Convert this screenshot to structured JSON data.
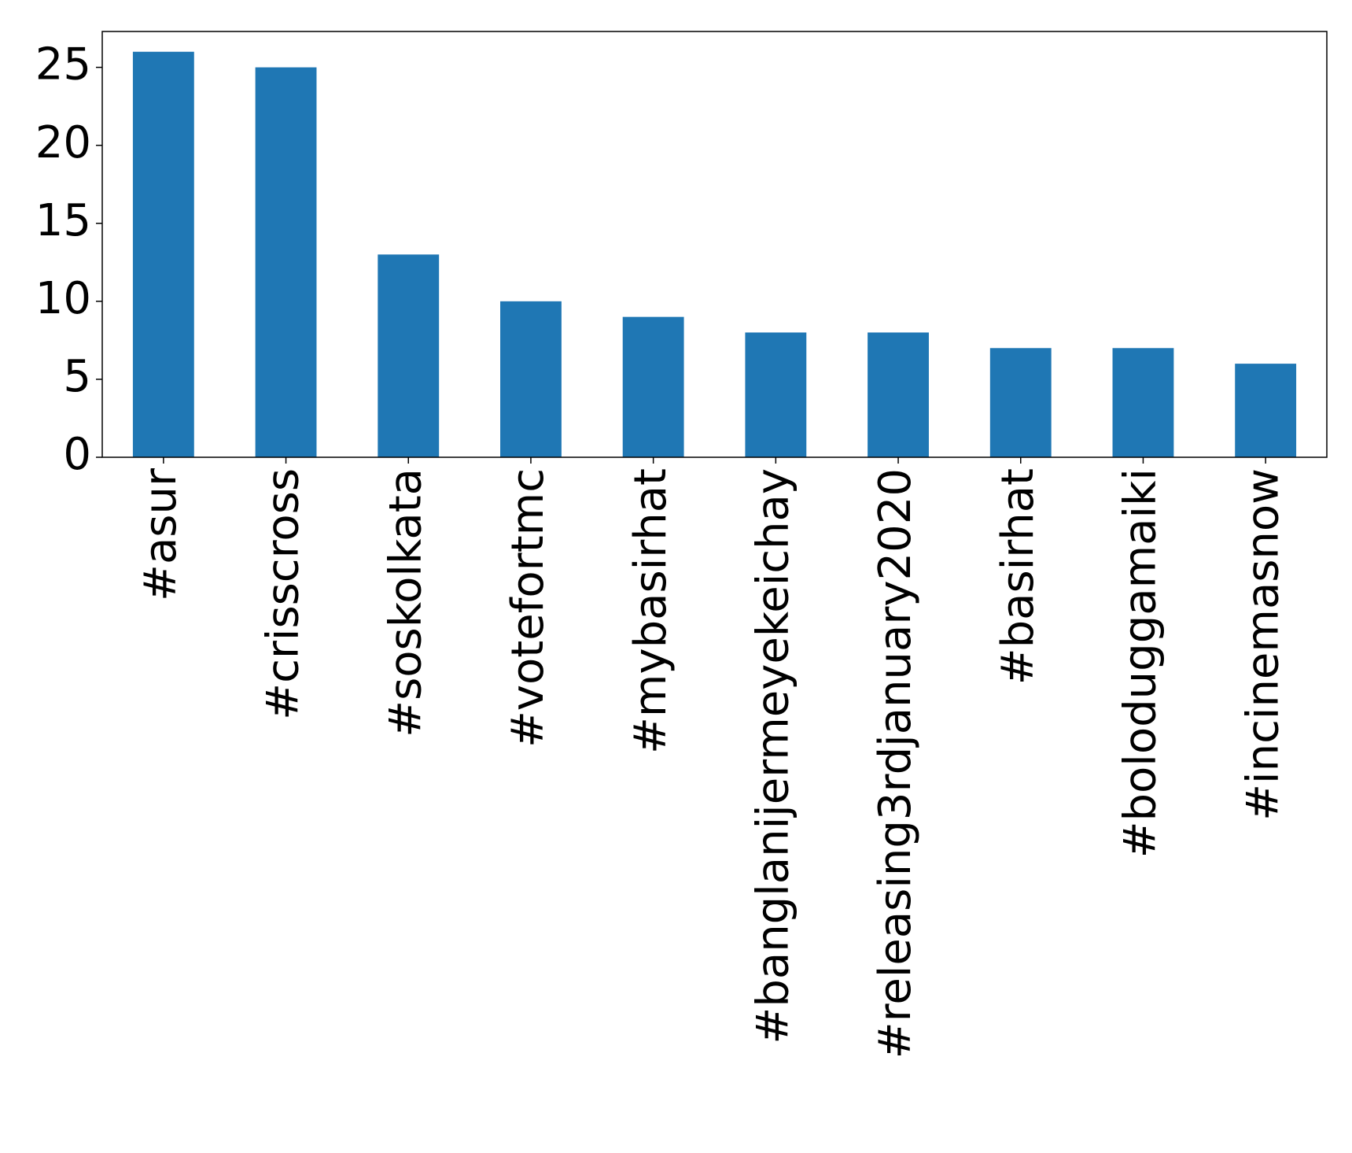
{
  "chart_data": {
    "type": "bar",
    "categories": [
      "#asur",
      "#crisscross",
      "#soskolkata",
      "#votefortmc",
      "#mybasirhat",
      "#banglanijermeyekeichay",
      "#releasing3rdjanuary2020",
      "#basirhat",
      "#boloduggamaiki",
      "#incinemasnow"
    ],
    "values": [
      26,
      25,
      13,
      10,
      9,
      8,
      8,
      7,
      7,
      6
    ],
    "color": "#1f77b4",
    "ylim": [
      0,
      27.3
    ],
    "yticks": [
      0,
      5,
      10,
      15,
      20,
      25
    ],
    "grid": false
  }
}
